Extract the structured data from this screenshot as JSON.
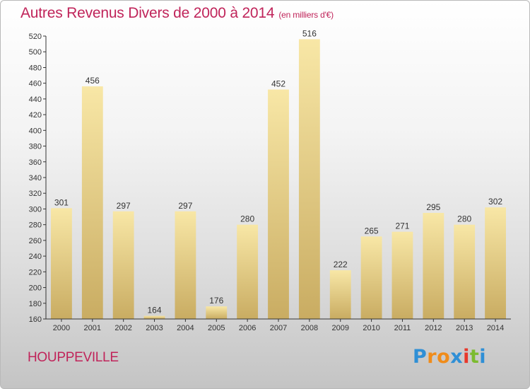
{
  "title": {
    "main": "Autres Revenus Divers de 2000 à 2014",
    "unit": "(en milliers d'€)"
  },
  "location": "HOUPPEVILLE",
  "logo": {
    "letters": [
      "P",
      "r",
      "o",
      "x",
      "i",
      "t",
      "i"
    ],
    "colors": [
      "#2f8fd6",
      "#f08c1a",
      "#f08c1a",
      "#2f8fd6",
      "#e8382b",
      "#7cbb2f",
      "#2f8fd6"
    ]
  },
  "colors": {
    "title": "#c0245a",
    "bar_light": "#f8e7a6",
    "bar_dark": "#c9ac62",
    "axis": "#333333"
  },
  "chart_data": {
    "type": "bar",
    "categories": [
      "2000",
      "2001",
      "2002",
      "2003",
      "2004",
      "2005",
      "2006",
      "2007",
      "2008",
      "2009",
      "2010",
      "2011",
      "2012",
      "2013",
      "2014"
    ],
    "values": [
      301,
      456,
      297,
      164,
      297,
      176,
      280,
      452,
      516,
      222,
      265,
      271,
      295,
      280,
      302
    ],
    "ylim": [
      160,
      520
    ],
    "yticks": [
      160,
      180,
      200,
      220,
      240,
      260,
      280,
      300,
      320,
      340,
      360,
      380,
      400,
      420,
      440,
      460,
      480,
      500,
      520
    ],
    "data_labels": true,
    "grid": false
  }
}
